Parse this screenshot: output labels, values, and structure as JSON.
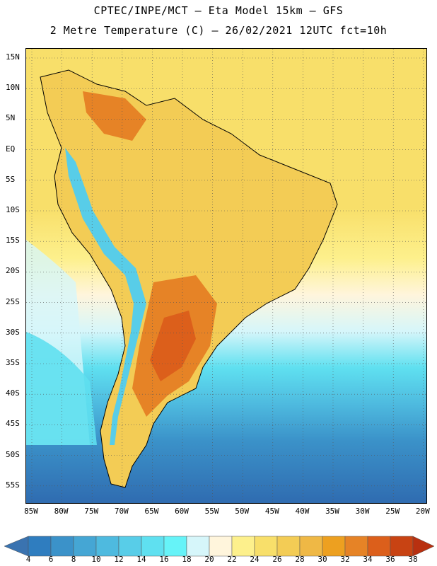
{
  "header": {
    "line1": "CPTEC/INPE/MCT –  Eta Model 15km – GFS",
    "line2": "2 Metre Temperature (C) – 26/02/2021 12UTC fct=10h"
  },
  "map": {
    "lat_labels": [
      "15N",
      "10N",
      "5N",
      "EQ",
      "5S",
      "10S",
      "15S",
      "20S",
      "25S",
      "30S",
      "35S",
      "40S",
      "45S",
      "50S",
      "55S"
    ],
    "lon_labels": [
      "85W",
      "80W",
      "75W",
      "70W",
      "65W",
      "60W",
      "55W",
      "50W",
      "45W",
      "40W",
      "35W",
      "30W",
      "25W",
      "20W"
    ],
    "grid": "dotted"
  },
  "colorbar": {
    "levels": [
      "4",
      "6",
      "8",
      "10",
      "12",
      "14",
      "16",
      "18",
      "20",
      "22",
      "24",
      "26",
      "28",
      "30",
      "32",
      "34",
      "36",
      "38"
    ],
    "colors": [
      "#3a73b0",
      "#2f7dbf",
      "#3b92c9",
      "#45a6d4",
      "#4ebadf",
      "#58cde8",
      "#5fe0f0",
      "#66f3f8",
      "#d6f6fa",
      "#fff5dc",
      "#fdf08c",
      "#f8df6a",
      "#f3cc55",
      "#efb845",
      "#eda020",
      "#e68326",
      "#dc5f1b",
      "#c84313",
      "#b83010"
    ],
    "extend": "both"
  }
}
